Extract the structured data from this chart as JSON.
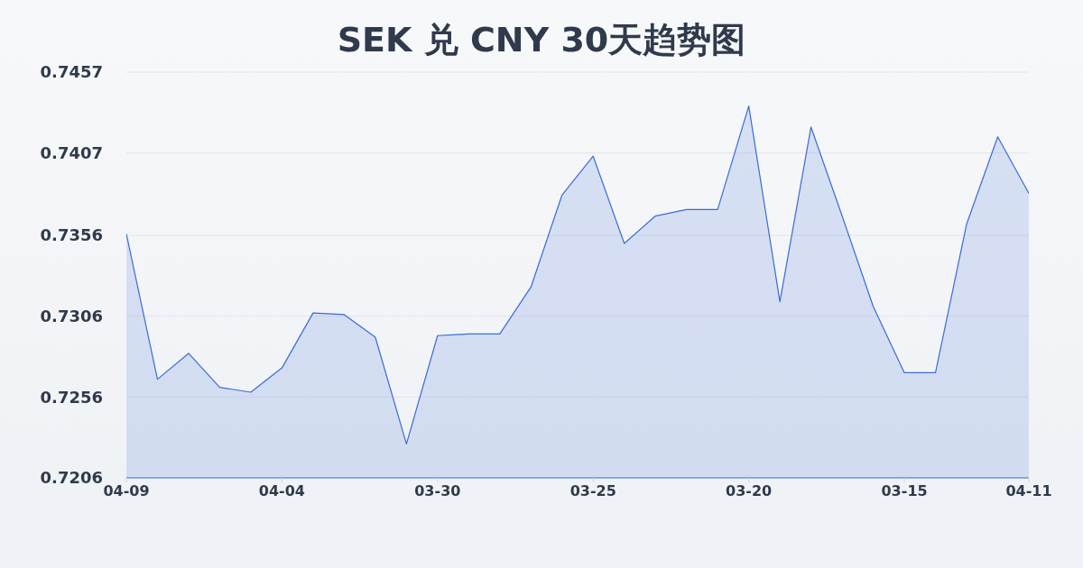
{
  "chart_data": {
    "type": "area",
    "title": "SEK 兑 CNY 30天趋势图",
    "categories": [
      "04-09",
      null,
      null,
      null,
      null,
      "04-04",
      null,
      null,
      null,
      null,
      "03-30",
      null,
      null,
      null,
      null,
      "03-25",
      null,
      null,
      null,
      null,
      "03-20",
      null,
      null,
      null,
      null,
      "03-15",
      null,
      null,
      null,
      "04-11"
    ],
    "series": [
      {
        "color": "#3b6cd3",
        "values": [
          0.7357,
          0.7267,
          0.7283,
          0.7262,
          0.7259,
          0.7274,
          0.7308,
          0.7307,
          0.7293,
          0.7227,
          0.7294,
          0.7295,
          0.7295,
          0.7324,
          0.7381,
          0.7405,
          0.7351,
          0.7368,
          0.7372,
          0.7372,
          0.7436,
          0.7315,
          0.7423,
          0.7368,
          0.7312,
          0.7271,
          0.7271,
          0.7363,
          0.7417,
          0.7382
        ]
      }
    ],
    "ylim": [
      0.7206,
      0.7457
    ],
    "yticks": [
      0.7206,
      0.7256,
      0.7306,
      0.7356,
      0.7407,
      0.7457
    ],
    "grid": "y"
  }
}
